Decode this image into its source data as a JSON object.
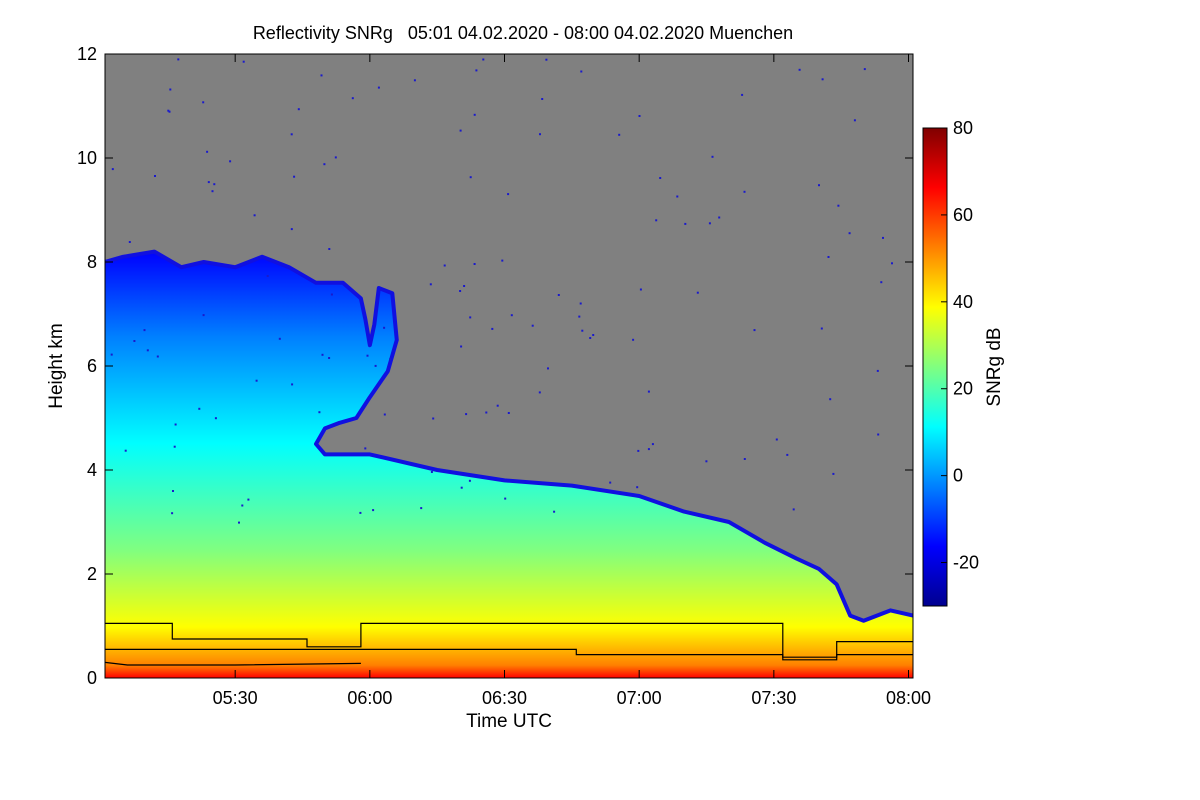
{
  "chart_data": {
    "type": "heatmap",
    "title": "Reflectivity SNRg   05:01 04.02.2020 - 08:00 04.02.2020 Muenchen",
    "xlabel": "Time UTC",
    "ylabel": "Height km",
    "colorbar_label": "SNRg dB",
    "x_range_minutes": [
      301,
      481
    ],
    "x_ticks": [
      {
        "label": "05:30",
        "minute": 330
      },
      {
        "label": "06:00",
        "minute": 360
      },
      {
        "label": "06:30",
        "minute": 390
      },
      {
        "label": "07:00",
        "minute": 420
      },
      {
        "label": "07:30",
        "minute": 450
      },
      {
        "label": "08:00",
        "minute": 480
      }
    ],
    "y_range_km": [
      0,
      12
    ],
    "y_ticks": [
      0,
      2,
      4,
      6,
      8,
      10,
      12
    ],
    "colorbar_range_db": [
      -30,
      80
    ],
    "colorbar_ticks": [
      -20,
      0,
      20,
      40,
      60,
      80
    ],
    "colors": {
      "no_signal": "#808080",
      "noise_speckle": "#1a1acc",
      "line": "#000000",
      "colormap": [
        "#00008f",
        "#0000ff",
        "#0080ff",
        "#00ffff",
        "#80ff80",
        "#ffff00",
        "#ff8000",
        "#ff0000",
        "#800000"
      ]
    },
    "cloud_top_km": [
      {
        "minute": 301,
        "km": 8.0
      },
      {
        "minute": 305,
        "km": 8.1
      },
      {
        "minute": 312,
        "km": 8.2
      },
      {
        "minute": 318,
        "km": 7.9
      },
      {
        "minute": 323,
        "km": 8.0
      },
      {
        "minute": 330,
        "km": 7.9
      },
      {
        "minute": 336,
        "km": 8.1
      },
      {
        "minute": 342,
        "km": 7.9
      },
      {
        "minute": 348,
        "km": 7.6
      },
      {
        "minute": 354,
        "km": 7.6
      },
      {
        "minute": 358,
        "km": 7.3
      },
      {
        "minute": 359,
        "km": 6.9
      },
      {
        "minute": 360,
        "km": 6.4
      },
      {
        "minute": 361,
        "km": 6.8
      },
      {
        "minute": 362,
        "km": 7.5
      },
      {
        "minute": 365,
        "km": 7.4
      },
      {
        "minute": 366,
        "km": 6.5
      },
      {
        "minute": 364,
        "km": 5.9
      },
      {
        "minute": 360,
        "km": 5.4
      },
      {
        "minute": 357,
        "km": 5.0
      },
      {
        "minute": 353,
        "km": 4.9
      },
      {
        "minute": 350,
        "km": 4.8
      },
      {
        "minute": 348,
        "km": 4.5
      },
      {
        "minute": 350,
        "km": 4.3
      },
      {
        "minute": 360,
        "km": 4.3
      },
      {
        "minute": 375,
        "km": 4.0
      },
      {
        "minute": 390,
        "km": 3.8
      },
      {
        "minute": 405,
        "km": 3.7
      },
      {
        "minute": 420,
        "km": 3.5
      },
      {
        "minute": 430,
        "km": 3.2
      },
      {
        "minute": 440,
        "km": 3.0
      },
      {
        "minute": 448,
        "km": 2.6
      },
      {
        "minute": 455,
        "km": 2.3
      },
      {
        "minute": 460,
        "km": 2.1
      },
      {
        "minute": 464,
        "km": 1.8
      },
      {
        "minute": 467,
        "km": 1.2
      },
      {
        "minute": 470,
        "km": 1.1
      },
      {
        "minute": 476,
        "km": 1.3
      },
      {
        "minute": 481,
        "km": 1.2
      }
    ],
    "series": [
      {
        "name": "upper boundary line",
        "points": [
          [
            301,
            1.05
          ],
          [
            316,
            1.05
          ],
          [
            316,
            0.75
          ],
          [
            346,
            0.75
          ],
          [
            346,
            0.6
          ],
          [
            358,
            0.6
          ],
          [
            358,
            1.05
          ],
          [
            452,
            1.05
          ],
          [
            452,
            0.35
          ],
          [
            464,
            0.35
          ],
          [
            464,
            0.7
          ],
          [
            481,
            0.7
          ]
        ]
      },
      {
        "name": "middle boundary line",
        "points": [
          [
            301,
            0.55
          ],
          [
            346,
            0.55
          ],
          [
            346,
            0.55
          ],
          [
            406,
            0.55
          ],
          [
            406,
            0.45
          ],
          [
            452,
            0.45
          ],
          [
            452,
            0.4
          ],
          [
            464,
            0.4
          ],
          [
            464,
            0.45
          ],
          [
            481,
            0.45
          ]
        ]
      },
      {
        "name": "lower boundary line",
        "points": [
          [
            301,
            0.3
          ],
          [
            306,
            0.25
          ],
          [
            330,
            0.25
          ],
          [
            358,
            0.28
          ],
          [
            358,
            0.28
          ]
        ]
      }
    ]
  }
}
